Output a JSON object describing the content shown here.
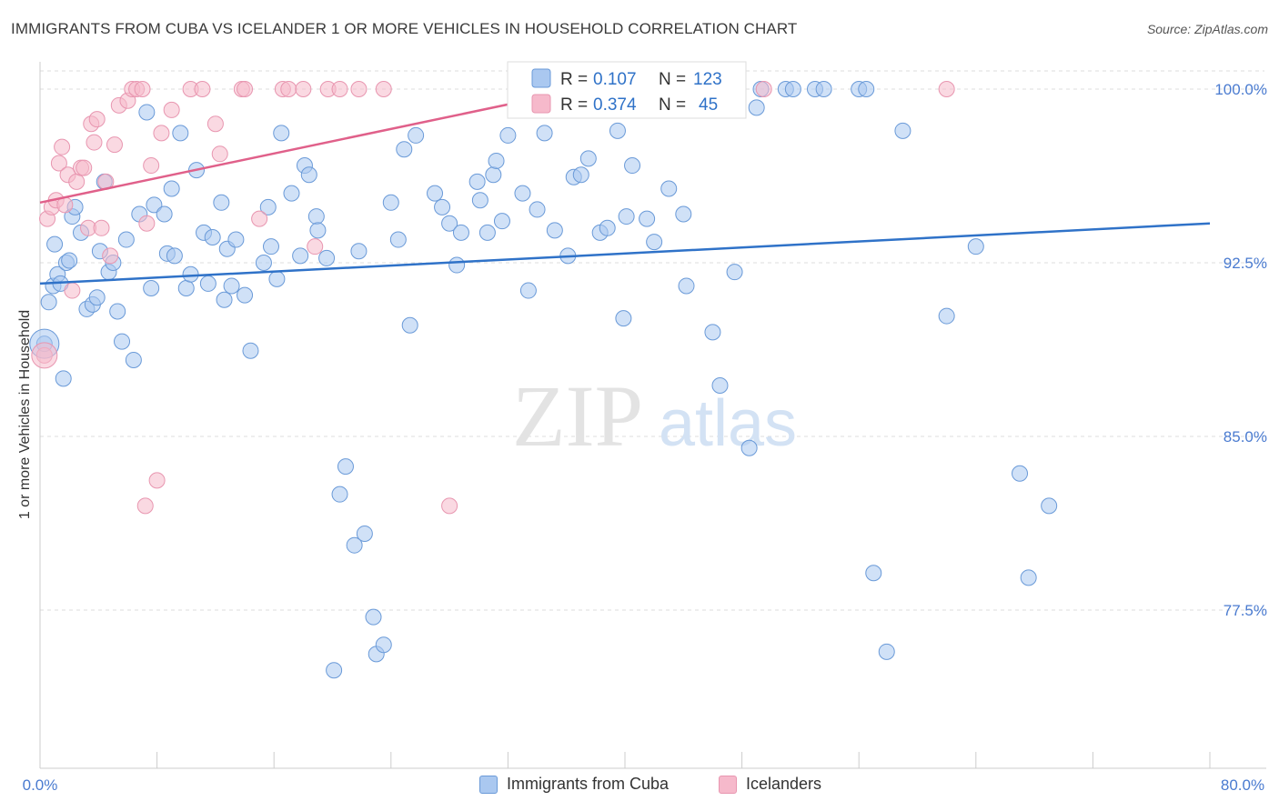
{
  "header": {
    "title": "IMMIGRANTS FROM CUBA VS ICELANDER 1 OR MORE VEHICLES IN HOUSEHOLD CORRELATION CHART",
    "source": "Source: ZipAtlas.com"
  },
  "watermark": {
    "zip": "ZIP",
    "atlas": "atlas"
  },
  "colors": {
    "blue_fill": "#aac8f0",
    "blue_stroke": "#6a9ad8",
    "blue_line": "#2f72c8",
    "pink_fill": "#f6b9cb",
    "pink_stroke": "#e896b0",
    "pink_line": "#e0608a",
    "tick_text": "#4a7bd0",
    "grid": "#dddddd"
  },
  "legend_top": {
    "rows": [
      {
        "r_label": "R = ",
        "r_value": "0.107",
        "n_label": "N = ",
        "n_value": "123"
      },
      {
        "r_label": "R = ",
        "r_value": "0.374",
        "n_label": "N = ",
        "n_value": "45"
      }
    ]
  },
  "legend_bottom": [
    {
      "label": "Immigrants from Cuba"
    },
    {
      "label": "Icelanders"
    }
  ],
  "chart_data": {
    "type": "scatter",
    "title": "IMMIGRANTS FROM CUBA VS ICELANDER 1 OR MORE VEHICLES IN HOUSEHOLD CORRELATION CHART",
    "xlabel": "",
    "ylabel": "1 or more Vehicles in Household",
    "xlim": [
      0,
      80
    ],
    "ylim": [
      70.0,
      101.0
    ],
    "x_tick_labels": [
      "0.0%",
      "80.0%"
    ],
    "y_ticks": [
      100.0,
      92.5,
      85.0,
      77.5
    ],
    "y_tick_labels": [
      "100.0%",
      "92.5%",
      "85.0%",
      "77.5%"
    ],
    "grid": "horizontal dashed",
    "legend_placement": "top-center",
    "series": [
      {
        "name": "Immigrants from Cuba",
        "r": 0.107,
        "n": 123,
        "trend": {
          "x": [
            0,
            80
          ],
          "y": [
            91.6,
            94.2
          ]
        },
        "x": [
          0.3,
          0.6,
          0.9,
          1.0,
          1.2,
          1.4,
          1.6,
          1.8,
          2.0,
          2.2,
          2.4,
          2.8,
          3.2,
          3.6,
          3.9,
          4.1,
          4.4,
          4.7,
          5.0,
          5.3,
          5.6,
          5.9,
          6.4,
          6.8,
          7.3,
          7.6,
          7.8,
          8.5,
          8.7,
          9.0,
          9.2,
          9.6,
          10.0,
          10.3,
          10.7,
          11.2,
          11.5,
          11.8,
          12.4,
          12.6,
          12.8,
          13.1,
          13.4,
          14.0,
          14.4,
          15.3,
          15.6,
          15.8,
          16.2,
          16.5,
          17.2,
          17.8,
          18.1,
          18.4,
          18.9,
          19.0,
          19.6,
          20.1,
          20.5,
          20.9,
          21.5,
          21.8,
          22.2,
          22.8,
          23.0,
          23.5,
          24.0,
          24.5,
          24.9,
          25.3,
          25.7,
          27.0,
          27.5,
          28.0,
          28.5,
          28.8,
          29.9,
          30.1,
          30.6,
          31.0,
          31.2,
          31.6,
          32.0,
          33.0,
          33.4,
          34.0,
          34.5,
          35.2,
          36.1,
          36.5,
          37.0,
          37.5,
          38.3,
          38.8,
          39.5,
          39.9,
          40.1,
          40.5,
          41.5,
          42.0,
          43.0,
          44.0,
          44.2,
          46.0,
          46.5,
          47.5,
          48.5,
          49.0,
          49.3,
          51.0,
          51.5,
          53.0,
          53.6,
          56.0,
          56.5,
          57.0,
          57.9,
          59.0,
          62.0,
          64.0,
          67.0,
          69.0,
          67.6
        ],
        "y": [
          89.0,
          90.8,
          91.5,
          93.3,
          92.0,
          91.6,
          87.5,
          92.5,
          92.6,
          94.5,
          94.9,
          93.8,
          90.5,
          90.7,
          91.0,
          93.0,
          96.0,
          92.1,
          92.5,
          90.4,
          89.1,
          93.5,
          88.3,
          94.6,
          99.0,
          91.4,
          95.0,
          94.6,
          92.9,
          95.7,
          92.8,
          98.1,
          91.4,
          92.0,
          96.5,
          93.8,
          91.6,
          93.6,
          95.1,
          90.9,
          93.1,
          91.5,
          93.5,
          91.1,
          88.7,
          92.5,
          94.9,
          93.2,
          91.8,
          98.1,
          95.5,
          92.8,
          96.7,
          96.3,
          94.5,
          93.9,
          92.7,
          74.9,
          82.5,
          83.7,
          80.3,
          93.0,
          80.8,
          77.2,
          75.6,
          76.0,
          95.1,
          93.5,
          97.4,
          89.8,
          98.0,
          95.5,
          94.9,
          94.2,
          92.4,
          93.8,
          96.0,
          95.2,
          93.8,
          96.3,
          96.9,
          94.3,
          98.0,
          95.5,
          91.3,
          94.8,
          98.1,
          93.9,
          92.8,
          96.2,
          96.3,
          97.0,
          93.8,
          94.0,
          98.2,
          90.1,
          94.5,
          96.7,
          94.4,
          93.4,
          95.7,
          94.6,
          91.5,
          89.5,
          87.2,
          92.1,
          84.5,
          99.2,
          100.0,
          100.0,
          100.0,
          100.0,
          100.0,
          100.0,
          100.0,
          79.1,
          75.7,
          98.2,
          90.2,
          93.2,
          83.4,
          82.0,
          78.9
        ]
      },
      {
        "name": "Icelanders",
        "r": 0.374,
        "n": 45,
        "trend": {
          "x": [
            0,
            37
          ],
          "y": [
            95.1,
            100.0
          ]
        },
        "x": [
          0.3,
          0.5,
          0.8,
          1.1,
          1.3,
          1.5,
          1.7,
          1.9,
          2.2,
          2.5,
          2.8,
          3.0,
          3.3,
          3.5,
          3.7,
          3.9,
          4.2,
          4.5,
          4.8,
          5.1,
          5.4,
          6.0,
          6.3,
          6.6,
          7.0,
          7.3,
          7.6,
          8.3,
          9.0,
          10.3,
          11.1,
          12.0,
          12.3,
          13.8,
          14.0,
          15.0,
          16.6,
          17.0,
          18.0,
          18.8,
          19.7,
          20.5,
          21.8,
          23.5,
          28.0
        ],
        "y": [
          88.5,
          94.4,
          94.9,
          95.2,
          96.8,
          97.5,
          95.0,
          96.3,
          91.3,
          96.0,
          96.6,
          96.6,
          94.0,
          98.5,
          97.7,
          98.7,
          94.0,
          96.0,
          92.8,
          97.6,
          99.3,
          99.5,
          100.0,
          100.0,
          100.0,
          94.2,
          96.7,
          98.1,
          99.1,
          100.0,
          100.0,
          98.5,
          97.2,
          100.0,
          100.0,
          94.4,
          100.0,
          100.0,
          100.0,
          93.2,
          100.0,
          100.0,
          100.0,
          100.0,
          82.0
        ],
        "extra_points": {
          "x": [
            8.0,
            7.2,
            49.5,
            62.0
          ],
          "y": [
            83.1,
            82.0,
            100.0,
            100.0
          ]
        }
      }
    ]
  }
}
